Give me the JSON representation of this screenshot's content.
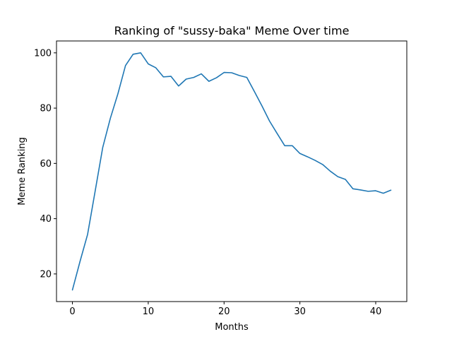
{
  "chart_data": {
    "type": "line",
    "title": "Ranking of \"sussy-baka\" Meme Over time",
    "xlabel": "Months",
    "ylabel": "Meme Ranking",
    "xlim": [
      -2.1,
      44.1
    ],
    "ylim": [
      10.0,
      104.3
    ],
    "xticks": [
      0,
      10,
      20,
      30,
      40
    ],
    "yticks": [
      20,
      40,
      60,
      80,
      100
    ],
    "grid": false,
    "legend": "none",
    "color": "#1f77b4",
    "x": [
      0,
      1,
      2,
      3,
      4,
      5,
      6,
      7,
      8,
      9,
      10,
      11,
      12,
      13,
      14,
      15,
      16,
      17,
      18,
      19,
      20,
      21,
      22,
      23,
      24,
      25,
      26,
      27,
      28,
      29,
      30,
      31,
      32,
      33,
      34,
      35,
      36,
      37,
      38,
      39,
      40,
      41,
      42
    ],
    "series": [
      {
        "values": [
          14.2,
          24.5,
          34.3,
          50.0,
          65.8,
          76.3,
          85.2,
          95.4,
          99.5,
          100.0,
          96.0,
          94.6,
          91.3,
          91.5,
          88.0,
          90.5,
          91.1,
          92.4,
          89.7,
          91.0,
          92.9,
          92.8,
          91.8,
          91.1,
          86.0,
          80.8,
          75.3,
          70.8,
          66.4,
          66.4,
          63.6,
          62.4,
          61.1,
          59.6,
          57.2,
          55.2,
          54.2,
          50.8,
          50.4,
          49.9,
          50.1,
          49.2,
          50.3
        ]
      }
    ]
  }
}
